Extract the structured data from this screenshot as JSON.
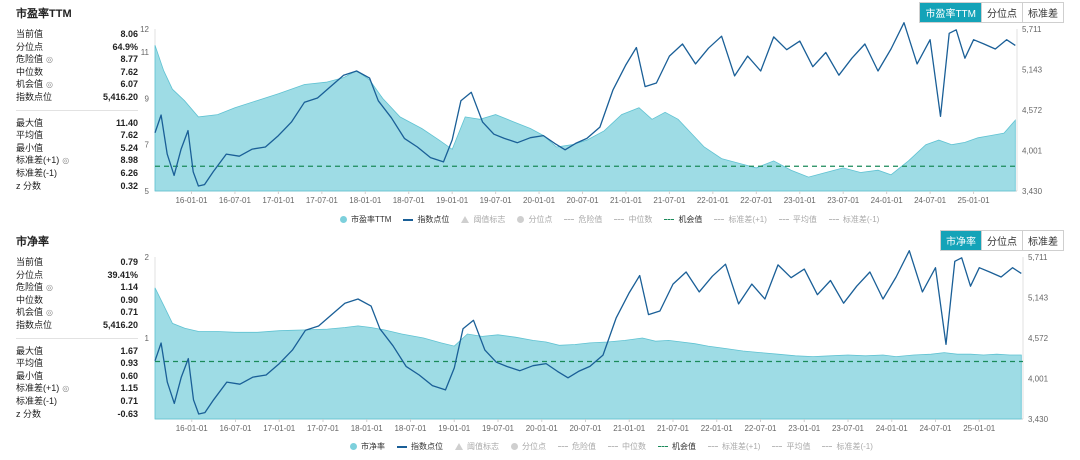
{
  "legend_labels": [
    "市盈率TTM",
    "指数点位",
    "阈值标志",
    "分位点",
    "危险值",
    "中位数",
    "机会值",
    "标准差(+1)",
    "平均值",
    "标准差(-1)"
  ],
  "colors": {
    "area": "#7dd0dc",
    "line": "#1a5f97",
    "opportunity": "#1b8a5a",
    "accent": "#14a3b8"
  },
  "panels": [
    {
      "title": "市盈率TTM",
      "tabs": [
        {
          "label": "市盈率TTM",
          "active": true
        },
        {
          "label": "分位点",
          "active": false
        },
        {
          "label": "标准差",
          "active": false
        }
      ],
      "stats_top": [
        {
          "label": "当前值",
          "value": "8.06",
          "help": false
        },
        {
          "label": "分位点",
          "value": "64.9%",
          "help": false
        },
        {
          "label": "危险值",
          "value": "8.77",
          "help": true
        },
        {
          "label": "中位数",
          "value": "7.62",
          "help": false
        },
        {
          "label": "机会值",
          "value": "6.07",
          "help": true
        },
        {
          "label": "指数点位",
          "value": "5,416.20",
          "help": false
        }
      ],
      "stats_bottom": [
        {
          "label": "最大值",
          "value": "11.40",
          "help": false
        },
        {
          "label": "平均值",
          "value": "7.62",
          "help": false
        },
        {
          "label": "最小值",
          "value": "5.24",
          "help": false
        },
        {
          "label": "标准差(+1)",
          "value": "8.98",
          "help": true
        },
        {
          "label": "标准差(-1)",
          "value": "6.26",
          "help": false
        },
        {
          "label": "z 分数",
          "value": "0.32",
          "help": false
        }
      ],
      "legend": [
        {
          "label": "市盈率TTM",
          "marker": "dot"
        },
        {
          "label": "指数点位",
          "marker": "line"
        },
        {
          "label": "阈值标志",
          "marker": "tri",
          "dim": true
        },
        {
          "label": "分位点",
          "marker": "greydot",
          "dim": true
        },
        {
          "label": "危险值",
          "marker": "dash",
          "dim": true
        },
        {
          "label": "中位数",
          "marker": "dash",
          "dim": true
        },
        {
          "label": "机会值",
          "marker": "greendash"
        },
        {
          "label": "标准差(+1)",
          "marker": "dash",
          "dim": true
        },
        {
          "label": "平均值",
          "marker": "dash",
          "dim": true
        },
        {
          "label": "标准差(-1)",
          "marker": "dash",
          "dim": true
        }
      ]
    },
    {
      "title": "市净率",
      "tabs": [
        {
          "label": "市净率",
          "active": true
        },
        {
          "label": "分位点",
          "active": false
        },
        {
          "label": "标准差",
          "active": false
        }
      ],
      "stats_top": [
        {
          "label": "当前值",
          "value": "0.79",
          "help": false
        },
        {
          "label": "分位点",
          "value": "39.41%",
          "help": false
        },
        {
          "label": "危险值",
          "value": "1.14",
          "help": true
        },
        {
          "label": "中位数",
          "value": "0.90",
          "help": false
        },
        {
          "label": "机会值",
          "value": "0.71",
          "help": true
        },
        {
          "label": "指数点位",
          "value": "5,416.20",
          "help": false
        }
      ],
      "stats_bottom": [
        {
          "label": "最大值",
          "value": "1.67",
          "help": false
        },
        {
          "label": "平均值",
          "value": "0.93",
          "help": false
        },
        {
          "label": "最小值",
          "value": "0.60",
          "help": false
        },
        {
          "label": "标准差(+1)",
          "value": "1.15",
          "help": true
        },
        {
          "label": "标准差(-1)",
          "value": "0.71",
          "help": false
        },
        {
          "label": "z 分数",
          "value": "-0.63",
          "help": false
        }
      ],
      "legend": [
        {
          "label": "市净率",
          "marker": "dot"
        },
        {
          "label": "指数点位",
          "marker": "line"
        },
        {
          "label": "阈值标志",
          "marker": "tri",
          "dim": true
        },
        {
          "label": "分位点",
          "marker": "greydot",
          "dim": true
        },
        {
          "label": "危险值",
          "marker": "dash",
          "dim": true
        },
        {
          "label": "中位数",
          "marker": "dash",
          "dim": true
        },
        {
          "label": "机会值",
          "marker": "greendash"
        },
        {
          "label": "标准差(+1)",
          "marker": "dash",
          "dim": true
        },
        {
          "label": "平均值",
          "marker": "dash",
          "dim": true
        },
        {
          "label": "标准差(-1)",
          "marker": "dash",
          "dim": true
        }
      ]
    }
  ],
  "chart_data": [
    {
      "type": "area",
      "title": "市盈率TTM",
      "x_range": [
        "2015-08-01",
        "2025-06-30"
      ],
      "x_ticks": [
        "16-01-01",
        "16-07-01",
        "17-01-01",
        "17-07-01",
        "18-01-01",
        "18-07-01",
        "19-01-01",
        "19-07-01",
        "20-01-01",
        "20-07-01",
        "21-01-01",
        "21-07-01",
        "22-01-01",
        "22-07-01",
        "23-01-01",
        "23-07-01",
        "24-01-01",
        "24-07-01",
        "25-01-01"
      ],
      "y_left": {
        "min": 5,
        "max": 12,
        "ticks": [
          "5",
          "7",
          "9",
          "11",
          "12"
        ]
      },
      "y_right": {
        "min": 3430,
        "max": 5711,
        "ticks": [
          "3,430",
          "4,001",
          "4,572",
          "5,143",
          "5,711"
        ]
      },
      "opportunity_line": 6.07,
      "series": [
        {
          "name": "市盈率TTM",
          "axis": "left",
          "x": [
            2015.58,
            2015.68,
            2015.78,
            2015.92,
            2016.08,
            2016.3,
            2016.5,
            2016.75,
            2017.0,
            2017.3,
            2017.55,
            2017.75,
            2017.9,
            2018.05,
            2018.2,
            2018.4,
            2018.65,
            2018.85,
            2019.0,
            2019.15,
            2019.32,
            2019.5,
            2019.7,
            2019.9,
            2020.05,
            2020.2,
            2020.38,
            2020.55,
            2020.75,
            2020.95,
            2021.15,
            2021.3,
            2021.45,
            2021.6,
            2021.75,
            2021.9,
            2022.1,
            2022.3,
            2022.5,
            2022.7,
            2022.9,
            2023.1,
            2023.3,
            2023.5,
            2023.7,
            2023.9,
            2024.05,
            2024.25,
            2024.45,
            2024.6,
            2024.75,
            2024.9,
            2025.05,
            2025.2,
            2025.35,
            2025.48
          ],
          "values": [
            11.3,
            10.2,
            9.4,
            8.9,
            8.2,
            8.3,
            8.6,
            8.9,
            9.2,
            9.6,
            9.7,
            9.9,
            10.2,
            9.8,
            9.0,
            8.2,
            7.7,
            7.2,
            6.8,
            8.2,
            8.1,
            8.3,
            8.0,
            7.7,
            7.4,
            6.9,
            7.0,
            7.2,
            7.6,
            8.3,
            8.6,
            8.1,
            8.4,
            8.1,
            7.5,
            6.9,
            6.4,
            6.2,
            6.0,
            6.3,
            5.9,
            5.6,
            5.8,
            6.0,
            5.8,
            5.9,
            5.7,
            6.3,
            7.0,
            7.2,
            7.0,
            7.1,
            7.3,
            7.4,
            7.5,
            8.06
          ]
        },
        {
          "name": "指数点位",
          "axis": "right",
          "x": [
            2015.58,
            2015.65,
            2015.72,
            2015.8,
            2015.88,
            2015.96,
            2016.02,
            2016.08,
            2016.15,
            2016.25,
            2016.4,
            2016.55,
            2016.7,
            2016.85,
            2017.0,
            2017.15,
            2017.3,
            2017.45,
            2017.6,
            2017.75,
            2017.9,
            2018.05,
            2018.15,
            2018.3,
            2018.45,
            2018.6,
            2018.75,
            2018.9,
            2019.0,
            2019.1,
            2019.22,
            2019.35,
            2019.48,
            2019.6,
            2019.75,
            2019.9,
            2020.05,
            2020.18,
            2020.3,
            2020.42,
            2020.55,
            2020.7,
            2020.85,
            2021.0,
            2021.12,
            2021.22,
            2021.35,
            2021.5,
            2021.65,
            2021.8,
            2021.95,
            2022.1,
            2022.25,
            2022.4,
            2022.55,
            2022.7,
            2022.85,
            2023.0,
            2023.15,
            2023.3,
            2023.45,
            2023.6,
            2023.75,
            2023.9,
            2024.05,
            2024.2,
            2024.35,
            2024.5,
            2024.62,
            2024.72,
            2024.8,
            2024.9,
            2025.0,
            2025.12,
            2025.25,
            2025.38,
            2025.48
          ],
          "values": [
            4250,
            4500,
            3950,
            3650,
            4020,
            4280,
            3700,
            3500,
            3520,
            3700,
            3950,
            3920,
            4020,
            4050,
            4210,
            4400,
            4680,
            4740,
            4900,
            5060,
            5120,
            5020,
            4700,
            4460,
            4170,
            4050,
            3900,
            3840,
            4150,
            4700,
            4820,
            4400,
            4230,
            4170,
            4110,
            4180,
            4210,
            4100,
            4010,
            4100,
            4170,
            4330,
            4850,
            5210,
            5450,
            4900,
            4950,
            5330,
            5500,
            5220,
            5440,
            5610,
            5050,
            5330,
            5120,
            5600,
            5420,
            5540,
            5180,
            5380,
            5060,
            5300,
            5500,
            5120,
            5430,
            5800,
            5220,
            5560,
            4480,
            5650,
            5700,
            5300,
            5560,
            5500,
            5430,
            5560,
            5480
          ]
        }
      ]
    },
    {
      "type": "area",
      "title": "市净率",
      "x_range": [
        "2015-08-01",
        "2025-06-30"
      ],
      "x_ticks": [
        "16-01-01",
        "16-07-01",
        "17-01-01",
        "17-07-01",
        "18-01-01",
        "18-07-01",
        "19-01-01",
        "19-07-01",
        "20-01-01",
        "20-07-01",
        "21-01-01",
        "21-07-01",
        "22-01-01",
        "22-07-01",
        "23-01-01",
        "23-07-01",
        "24-01-01",
        "24-07-01",
        "25-01-01"
      ],
      "y_left": {
        "min": 0,
        "max": 2,
        "ticks": [
          "1",
          "2"
        ]
      },
      "y_right": {
        "min": 3430,
        "max": 5711,
        "ticks": [
          "3,430",
          "4,001",
          "4,572",
          "5,143",
          "5,711"
        ]
      },
      "opportunity_line": 0.71,
      "series": [
        {
          "name": "市净率",
          "axis": "left",
          "x": [
            2015.58,
            2015.68,
            2015.78,
            2015.92,
            2016.08,
            2016.3,
            2016.5,
            2016.75,
            2017.0,
            2017.3,
            2017.55,
            2017.75,
            2017.9,
            2018.05,
            2018.2,
            2018.4,
            2018.65,
            2018.85,
            2019.0,
            2019.15,
            2019.32,
            2019.5,
            2019.7,
            2019.9,
            2020.05,
            2020.2,
            2020.38,
            2020.55,
            2020.75,
            2020.95,
            2021.15,
            2021.3,
            2021.45,
            2021.6,
            2021.75,
            2021.9,
            2022.1,
            2022.3,
            2022.5,
            2022.7,
            2022.9,
            2023.1,
            2023.3,
            2023.5,
            2023.7,
            2023.9,
            2024.05,
            2024.25,
            2024.45,
            2024.6,
            2024.75,
            2024.9,
            2025.05,
            2025.2,
            2025.35,
            2025.48
          ],
          "values": [
            1.62,
            1.4,
            1.18,
            1.12,
            1.08,
            1.08,
            1.07,
            1.07,
            1.09,
            1.1,
            1.11,
            1.13,
            1.15,
            1.13,
            1.1,
            1.05,
            1.0,
            0.94,
            0.9,
            1.05,
            1.02,
            1.04,
            1.01,
            0.97,
            0.95,
            0.91,
            0.92,
            0.94,
            0.95,
            0.97,
            1.0,
            0.96,
            0.97,
            0.95,
            0.93,
            0.9,
            0.87,
            0.84,
            0.82,
            0.8,
            0.78,
            0.77,
            0.78,
            0.79,
            0.78,
            0.79,
            0.77,
            0.79,
            0.8,
            0.82,
            0.8,
            0.8,
            0.79,
            0.8,
            0.79,
            0.79
          ]
        },
        {
          "name": "指数点位",
          "axis": "right",
          "x": [
            2015.58,
            2015.65,
            2015.72,
            2015.8,
            2015.88,
            2015.96,
            2016.02,
            2016.08,
            2016.15,
            2016.25,
            2016.4,
            2016.55,
            2016.7,
            2016.85,
            2017.0,
            2017.15,
            2017.3,
            2017.45,
            2017.6,
            2017.75,
            2017.9,
            2018.05,
            2018.15,
            2018.3,
            2018.45,
            2018.6,
            2018.75,
            2018.9,
            2019.0,
            2019.1,
            2019.22,
            2019.35,
            2019.48,
            2019.6,
            2019.75,
            2019.9,
            2020.05,
            2020.18,
            2020.3,
            2020.42,
            2020.55,
            2020.7,
            2020.85,
            2021.0,
            2021.12,
            2021.22,
            2021.35,
            2021.5,
            2021.65,
            2021.8,
            2021.95,
            2022.1,
            2022.25,
            2022.4,
            2022.55,
            2022.7,
            2022.85,
            2023.0,
            2023.15,
            2023.3,
            2023.45,
            2023.6,
            2023.75,
            2023.9,
            2024.05,
            2024.2,
            2024.35,
            2024.5,
            2024.62,
            2024.72,
            2024.8,
            2024.9,
            2025.0,
            2025.12,
            2025.25,
            2025.38,
            2025.48
          ],
          "values": [
            4250,
            4500,
            3950,
            3650,
            4020,
            4280,
            3700,
            3500,
            3520,
            3700,
            3950,
            3920,
            4020,
            4050,
            4210,
            4400,
            4680,
            4740,
            4900,
            5060,
            5120,
            5020,
            4700,
            4460,
            4170,
            4050,
            3900,
            3840,
            4150,
            4700,
            4820,
            4400,
            4230,
            4170,
            4110,
            4180,
            4210,
            4100,
            4010,
            4100,
            4170,
            4330,
            4850,
            5210,
            5450,
            4900,
            4950,
            5330,
            5500,
            5220,
            5440,
            5610,
            5050,
            5330,
            5120,
            5600,
            5420,
            5540,
            5180,
            5380,
            5060,
            5300,
            5500,
            5120,
            5430,
            5800,
            5220,
            5560,
            4480,
            5650,
            5700,
            5300,
            5560,
            5500,
            5430,
            5560,
            5480
          ]
        }
      ]
    }
  ]
}
